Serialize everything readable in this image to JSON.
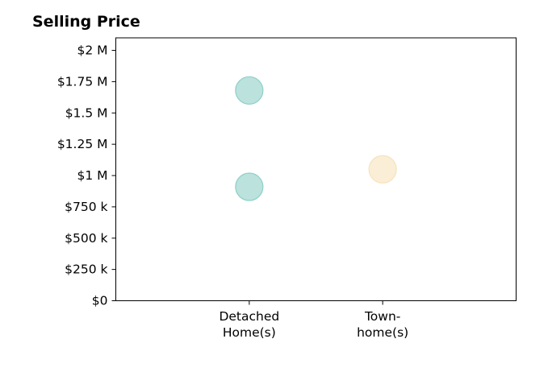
{
  "chart_data": {
    "type": "scatter",
    "title": "Selling Price",
    "xlabel": "",
    "ylabel": "",
    "categories": [
      {
        "key": "detached",
        "lines": [
          "Detached",
          "Home(s)"
        ]
      },
      {
        "key": "townhome",
        "lines": [
          "Town-",
          "home(s)"
        ]
      }
    ],
    "x_positions": [
      1,
      2
    ],
    "xlim": [
      0,
      3
    ],
    "ylim": [
      0,
      2100000
    ],
    "y_ticks": [
      {
        "value": 0,
        "label": "$0"
      },
      {
        "value": 250000,
        "label": "$250 k"
      },
      {
        "value": 500000,
        "label": "$500 k"
      },
      {
        "value": 750000,
        "label": "$750 k"
      },
      {
        "value": 1000000,
        "label": "$1 M"
      },
      {
        "value": 1250000,
        "label": "$1.25 M"
      },
      {
        "value": 1500000,
        "label": "$1.5 M"
      },
      {
        "value": 1750000,
        "label": "$1.75 M"
      },
      {
        "value": 2000000,
        "label": "$2 M"
      }
    ],
    "points": [
      {
        "category": "detached",
        "y": 1680000,
        "color": "#8fcfc7"
      },
      {
        "category": "detached",
        "y": 910000,
        "color": "#8fcfc7"
      },
      {
        "category": "townhome",
        "y": 1050000,
        "color": "#f6e3bd"
      }
    ],
    "grid": false,
    "legend": "none"
  }
}
